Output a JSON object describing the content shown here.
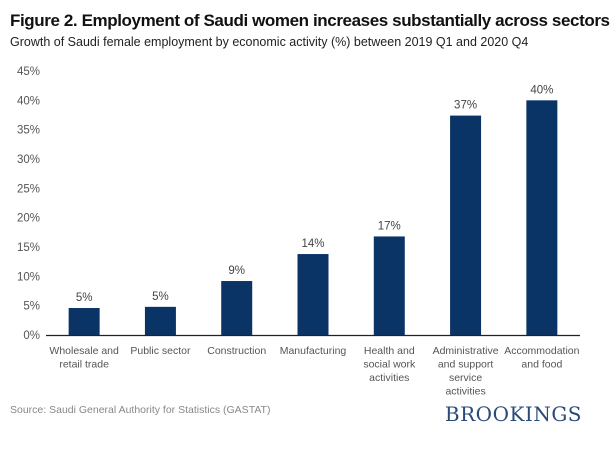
{
  "title": "Figure 2. Employment of Saudi women increases substantially across sectors",
  "subtitle": "Growth of Saudi female employment by economic activity (%) between 2019 Q1 and 2020 Q4",
  "source": "Source: Saudi General Authority for Statistics (GASTAT)",
  "logo": "BROOKINGS",
  "chart_data": {
    "type": "bar",
    "categories": [
      [
        "Wholesale and",
        "retail trade"
      ],
      [
        "Public sector"
      ],
      [
        "Construction"
      ],
      [
        "Manufacturing"
      ],
      [
        "Health and",
        "social work",
        "activities"
      ],
      [
        "Administrative",
        "and support",
        "service activities"
      ],
      [
        "Accommodation",
        "and food"
      ]
    ],
    "values": [
      4.6,
      4.8,
      9.2,
      13.8,
      16.8,
      37.4,
      40.0
    ],
    "data_labels": [
      "5%",
      "5%",
      "9%",
      "14%",
      "17%",
      "37%",
      "40%"
    ],
    "ylim": [
      0,
      45
    ],
    "yticks": [
      "0%",
      "5%",
      "10%",
      "15%",
      "20%",
      "25%",
      "30%",
      "35%",
      "40%",
      "45%"
    ],
    "grid": false,
    "bar_color": "#0b3466"
  }
}
